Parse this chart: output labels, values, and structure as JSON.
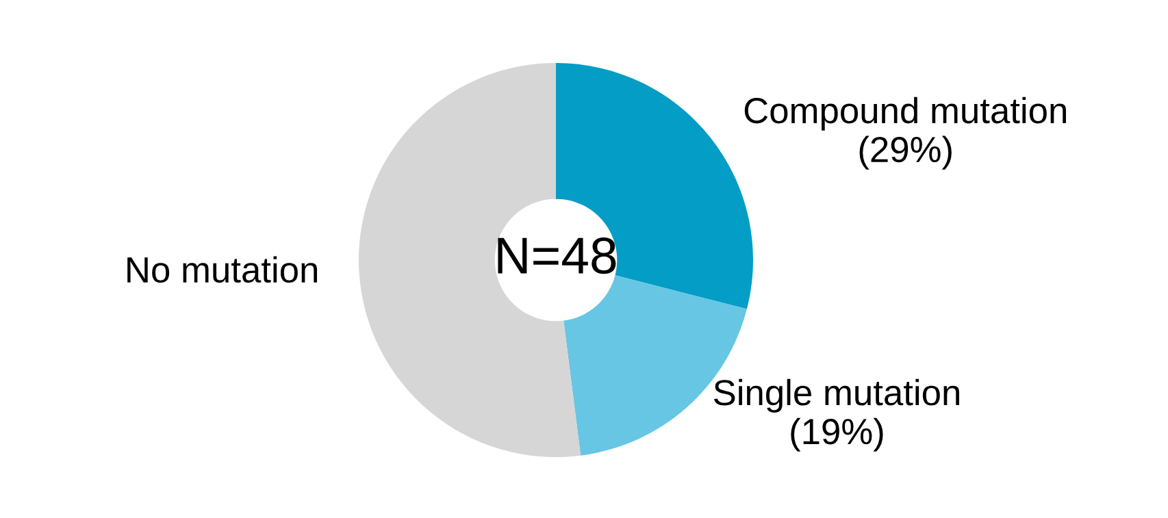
{
  "chart_data": {
    "type": "donut",
    "categories": [
      "Compound mutation",
      "Single mutation",
      "No mutation"
    ],
    "values": [
      29,
      19,
      52
    ],
    "value_labels": [
      "(29%)",
      "(19%)",
      null
    ],
    "colors": [
      "#049dc6",
      "#66c6e4",
      "#d6d6d6"
    ],
    "annotations": [
      "N=48"
    ]
  }
}
